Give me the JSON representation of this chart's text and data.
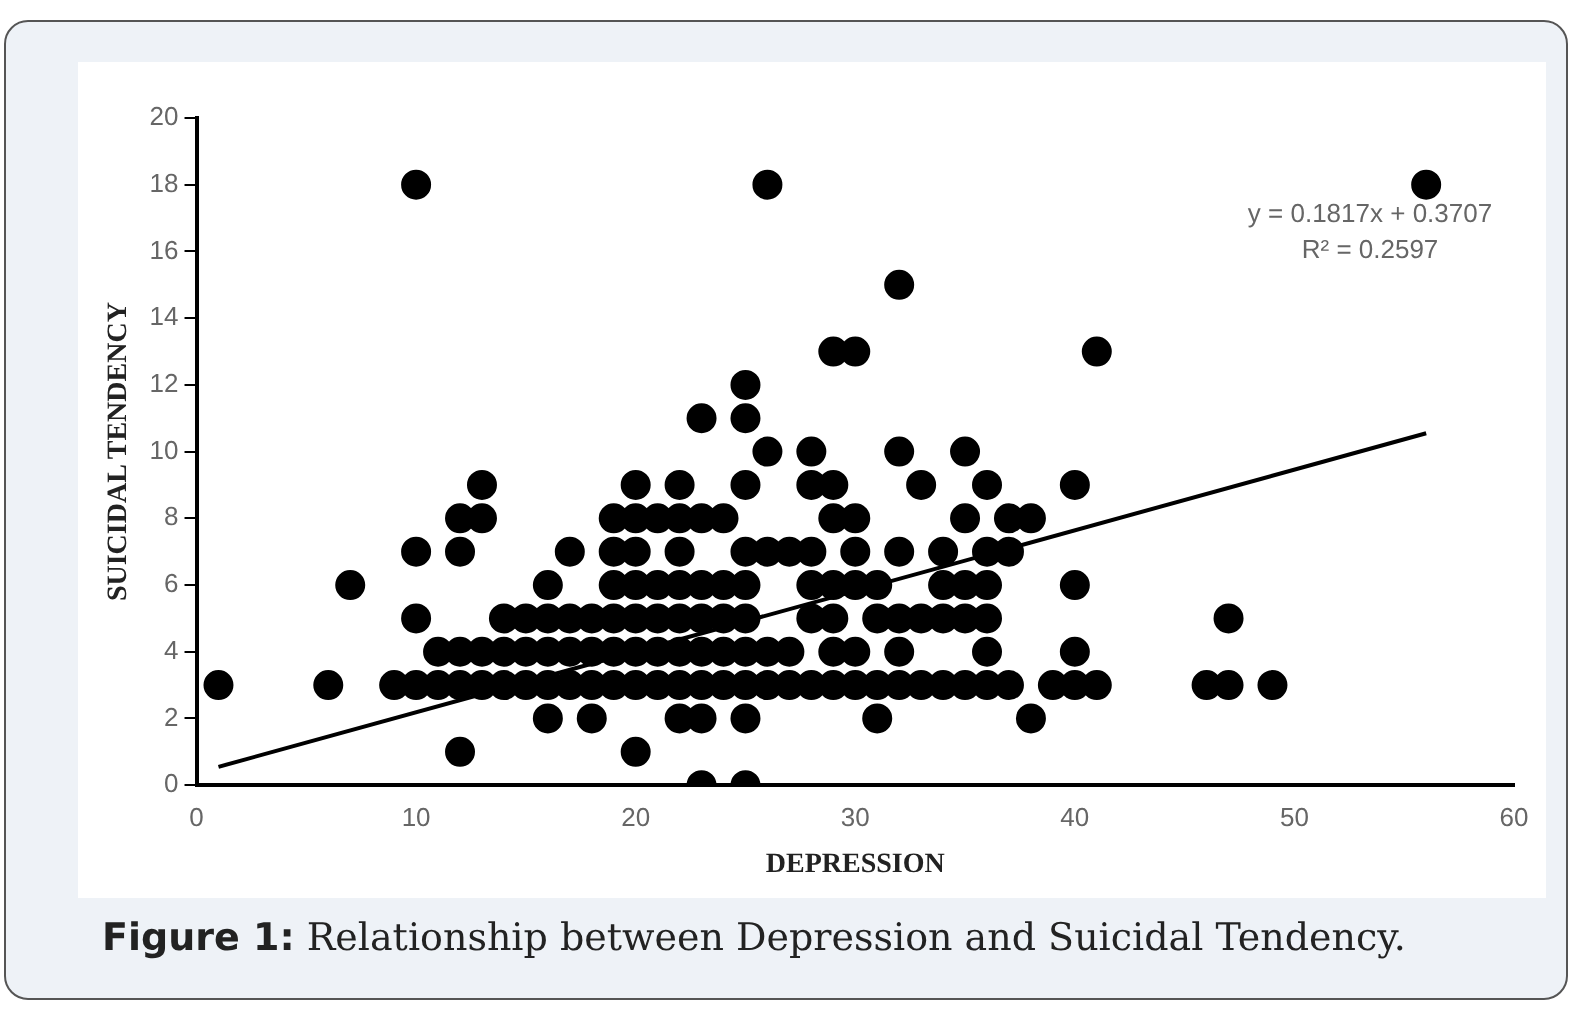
{
  "chart_data": {
    "type": "scatter",
    "xlabel": "DEPRESSION",
    "ylabel": "SUICIDAL TENDENCY",
    "xlim": [
      0,
      60
    ],
    "xticks": [
      0,
      10,
      20,
      30,
      40,
      50,
      60
    ],
    "ylim": [
      0,
      20
    ],
    "yticks": [
      0,
      2,
      4,
      6,
      8,
      10,
      12,
      14,
      16,
      18,
      20
    ],
    "grid": false,
    "legend": false,
    "series": [
      {
        "color": "#000000",
        "marker": "circle",
        "x": [
          1,
          6,
          7,
          9,
          10,
          10,
          10,
          10,
          11,
          11,
          12,
          12,
          12,
          12,
          12,
          13,
          13,
          13,
          13,
          14,
          14,
          14,
          15,
          15,
          15,
          16,
          16,
          16,
          16,
          16,
          17,
          17,
          17,
          17,
          18,
          18,
          18,
          18,
          19,
          19,
          19,
          19,
          19,
          19,
          20,
          20,
          20,
          20,
          20,
          20,
          20,
          20,
          21,
          21,
          21,
          21,
          21,
          22,
          22,
          22,
          22,
          22,
          22,
          22,
          22,
          23,
          23,
          23,
          23,
          23,
          23,
          23,
          23,
          24,
          24,
          24,
          24,
          24,
          25,
          25,
          25,
          25,
          25,
          25,
          25,
          25,
          25,
          25,
          26,
          26,
          26,
          26,
          26,
          27,
          27,
          27,
          28,
          28,
          28,
          28,
          28,
          28,
          29,
          29,
          29,
          29,
          29,
          29,
          29,
          30,
          30,
          30,
          30,
          30,
          30,
          31,
          31,
          31,
          31,
          32,
          32,
          32,
          32,
          32,
          32,
          33,
          33,
          33,
          34,
          34,
          34,
          34,
          35,
          35,
          35,
          35,
          35,
          36,
          36,
          36,
          36,
          36,
          36,
          37,
          37,
          37,
          38,
          38,
          39,
          40,
          40,
          40,
          40,
          41,
          41,
          46,
          47,
          47,
          49,
          56
        ],
        "values": [
          3,
          3,
          6,
          3,
          3,
          5,
          7,
          18,
          3,
          4,
          1,
          3,
          4,
          7,
          8,
          3,
          4,
          8,
          9,
          3,
          4,
          5,
          3,
          4,
          5,
          2,
          3,
          4,
          5,
          6,
          3,
          4,
          5,
          7,
          2,
          3,
          4,
          5,
          3,
          4,
          5,
          6,
          7,
          8,
          1,
          3,
          4,
          5,
          6,
          7,
          8,
          9,
          3,
          4,
          5,
          6,
          8,
          2,
          3,
          4,
          5,
          6,
          7,
          8,
          9,
          0,
          2,
          3,
          4,
          5,
          6,
          8,
          11,
          3,
          4,
          5,
          6,
          8,
          0,
          2,
          3,
          4,
          5,
          6,
          7,
          9,
          11,
          12,
          3,
          4,
          7,
          10,
          18,
          3,
          4,
          7,
          3,
          5,
          6,
          7,
          9,
          10,
          3,
          4,
          5,
          6,
          8,
          9,
          13,
          3,
          4,
          6,
          7,
          8,
          13,
          2,
          3,
          5,
          6,
          3,
          4,
          5,
          7,
          10,
          15,
          3,
          5,
          9,
          3,
          5,
          6,
          7,
          3,
          5,
          6,
          8,
          10,
          3,
          4,
          5,
          6,
          7,
          9,
          3,
          7,
          8,
          2,
          8,
          3,
          3,
          4,
          6,
          9,
          3,
          13,
          3,
          3,
          5,
          3,
          18
        ]
      },
      {
        "type": "line",
        "color": "#000000",
        "marker": "none",
        "x": [
          1,
          56
        ],
        "values": [
          0.55,
          10.55
        ]
      }
    ],
    "annotations": [
      "y = 0.1817x + 0.3707",
      "R² = 0.2597",
      "Figure 1: Relationship between Depression and Suicidal Tendency."
    ]
  }
}
